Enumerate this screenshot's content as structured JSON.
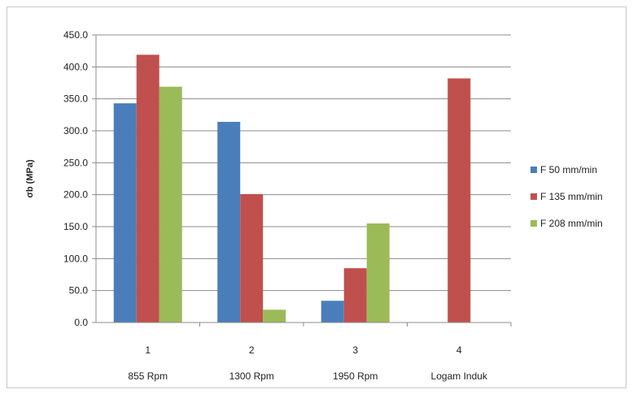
{
  "chart_data": {
    "type": "bar",
    "categories": [
      "1",
      "2",
      "3",
      "4"
    ],
    "category_sublabels": [
      "855 Rpm",
      "1300 Rpm",
      "1950 Rpm",
      "Logam Induk"
    ],
    "series": [
      {
        "name": "F 50 mm/min",
        "color": "#4a7ebb",
        "values": [
          343,
          314,
          34,
          null
        ]
      },
      {
        "name": "F 135 mm/min",
        "color": "#c0504d",
        "values": [
          419,
          201,
          85,
          382
        ]
      },
      {
        "name": "F 208 mm/min",
        "color": "#9bbb59",
        "values": [
          369,
          20,
          155,
          null
        ]
      }
    ],
    "ylabel": "σb (MPa)",
    "ylim": [
      0,
      450
    ],
    "yticks": [
      "0.0",
      "50.0",
      "100.0",
      "150.0",
      "200.0",
      "250.0",
      "300.0",
      "350.0",
      "400.0",
      "450.0"
    ],
    "grid": true,
    "legend_position": "right"
  }
}
